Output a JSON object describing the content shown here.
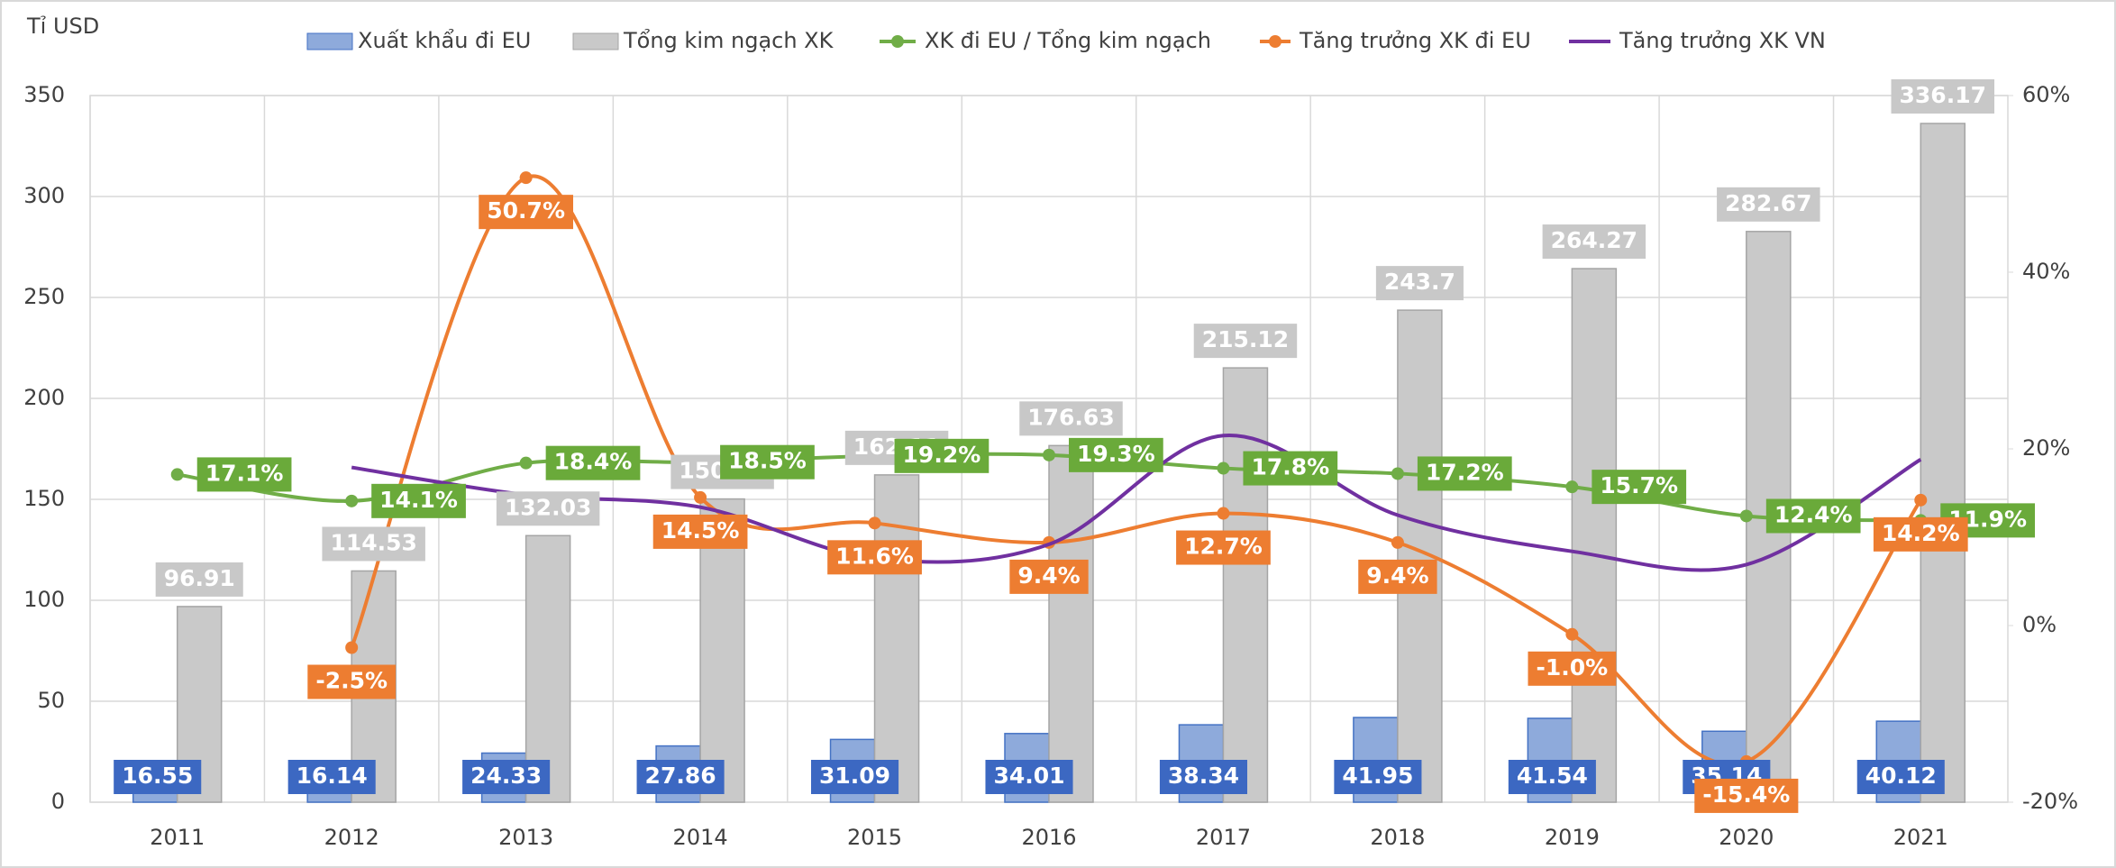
{
  "chart_data": {
    "type": "bar",
    "y_label": "Tỉ USD",
    "categories": [
      "2011",
      "2012",
      "2013",
      "2014",
      "2015",
      "2016",
      "2017",
      "2018",
      "2019",
      "2020",
      "2021"
    ],
    "ylim": [
      0,
      350
    ],
    "yticks": [
      0,
      50,
      100,
      150,
      200,
      250,
      300,
      350
    ],
    "y2lim": [
      -20,
      60
    ],
    "y2ticks": [
      {
        "value": -20,
        "label": "-20%"
      },
      {
        "value": 0,
        "label": "0%"
      },
      {
        "value": 20,
        "label": "20%"
      },
      {
        "value": 40,
        "label": "40%"
      },
      {
        "value": 60,
        "label": "60%"
      }
    ],
    "grid": true,
    "series": [
      {
        "name": "Xuất khẩu đi EU",
        "type": "bar",
        "color": "#8eaadb",
        "values": [
          16.55,
          16.14,
          24.33,
          27.86,
          31.09,
          34.01,
          38.34,
          41.95,
          41.54,
          35.14,
          40.12
        ]
      },
      {
        "name": "Tổng kim ngạch XK",
        "type": "bar",
        "color": "#c9c9c9",
        "values": [
          96.91,
          114.53,
          132.03,
          150.19,
          162.11,
          176.63,
          215.12,
          243.7,
          264.27,
          282.67,
          336.17
        ]
      },
      {
        "name": "XK đi EU / Tổng kim ngạch",
        "type": "line",
        "axis": "y2",
        "color": "#70ad47",
        "values": [
          17.1,
          14.1,
          18.4,
          18.5,
          19.2,
          19.3,
          17.8,
          17.2,
          15.7,
          12.4,
          11.9
        ],
        "value_labels": [
          "17.1%",
          "14.1%",
          "18.4%",
          "18.5%",
          "19.2%",
          "19.3%",
          "17.8%",
          "17.2%",
          "15.7%",
          "12.4%",
          "11.9%"
        ]
      },
      {
        "name": "Tăng trưởng XK đi EU",
        "type": "line",
        "axis": "y2",
        "color": "#ed7d31",
        "values": [
          null,
          -2.5,
          50.7,
          14.5,
          11.6,
          9.4,
          12.7,
          9.4,
          -1.0,
          -15.4,
          14.2
        ],
        "value_labels": [
          null,
          "-2.5%",
          "50.7%",
          "14.5%",
          "11.6%",
          "9.4%",
          "12.7%",
          "9.4%",
          "-1.0%",
          "-15.4%",
          "14.2%"
        ]
      },
      {
        "name": "Tăng trưởng XK VN",
        "type": "line",
        "axis": "y2",
        "color": "#7030a0",
        "values": [
          null,
          17.9,
          14.8,
          13.4,
          7.6,
          9.2,
          21.5,
          12.5,
          8.4,
          6.9,
          18.8
        ]
      }
    ]
  }
}
